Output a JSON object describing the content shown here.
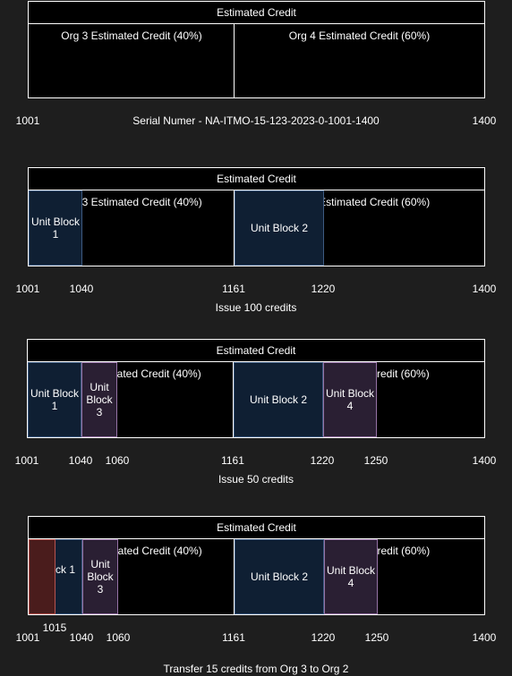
{
  "header_label": "Estimated Credit",
  "org3_label": "Org 3 Estimated Credit (40%)",
  "org4_label": "Org 4 Estimated Credit (60%)",
  "serial_label": "Serial Numer - NA-ITMO-15-123-2023-0-1001-1400",
  "ticks": {
    "t1001": "1001",
    "t1015": "1015",
    "t1040": "1040",
    "t1060": "1060",
    "t1161": "1161",
    "t1220": "1220",
    "t1250": "1250",
    "t1400": "1400"
  },
  "blocks": {
    "ub1": "Unit Block 1",
    "ub2": "Unit Block 2",
    "ub3": "Unit Block 3",
    "ub4": "Unit Block 4"
  },
  "captions": {
    "issue100": "Issue 100 credits",
    "issue50": "Issue 50 credits",
    "transfer": "Transfer 15 credits from Org 3 to Org 2"
  },
  "colors": {
    "block_blue": "#0f1f33",
    "block_purple": "#2a1f33",
    "block_red": "#4a1c1c"
  }
}
